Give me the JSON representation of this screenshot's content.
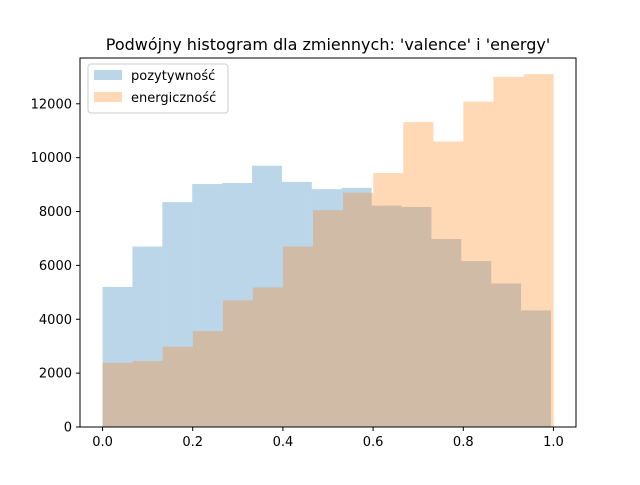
{
  "chart_data": {
    "type": "bar",
    "title": "Podwójny histogram dla zmiennych: 'valence' i 'energy'",
    "xlabel": "",
    "ylabel": "",
    "xlim": [
      -0.05,
      1.05
    ],
    "ylim": [
      0,
      13700
    ],
    "x_ticks": [
      "0.0",
      "0.2",
      "0.4",
      "0.6",
      "0.8",
      "1.0"
    ],
    "x_tick_values": [
      0.0,
      0.2,
      0.4,
      0.6,
      0.8,
      1.0
    ],
    "y_ticks": [
      "0",
      "2000",
      "4000",
      "6000",
      "8000",
      "10000",
      "12000"
    ],
    "y_tick_values": [
      0,
      2000,
      4000,
      6000,
      8000,
      10000,
      12000
    ],
    "grid": false,
    "legend_position": "top-left",
    "series": [
      {
        "name": "pozytywność",
        "color": "#1f77b4",
        "opacity": 0.3,
        "bin_start": 0.0,
        "bin_width": 0.0663,
        "values": [
          5200,
          6700,
          8350,
          9020,
          9060,
          9700,
          9100,
          8830,
          8880,
          8220,
          8170,
          6980,
          6160,
          5330,
          4330
        ]
      },
      {
        "name": "energiczność",
        "color": "#ff7f0e",
        "opacity": 0.3,
        "bin_start": 0.0,
        "bin_width": 0.0667,
        "values": [
          2380,
          2450,
          2980,
          3560,
          4700,
          5180,
          6700,
          8050,
          8700,
          9430,
          11320,
          10600,
          12080,
          13000,
          13100
        ]
      }
    ]
  }
}
